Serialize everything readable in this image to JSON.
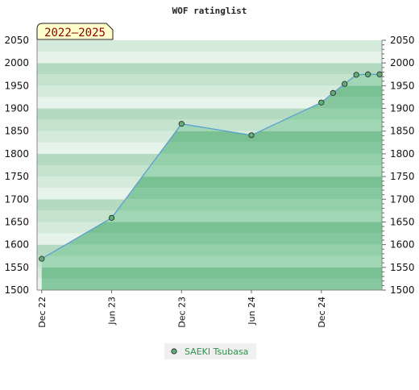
{
  "chart_data": {
    "type": "area",
    "title": "WOF ratinglist",
    "badge": "2022–2025",
    "xlabel": "",
    "ylabel": "",
    "ylim": [
      1500,
      2050
    ],
    "y_ticks": [
      1500,
      1550,
      1600,
      1650,
      1700,
      1750,
      1800,
      1850,
      1900,
      1950,
      2000,
      2050
    ],
    "x_ticks": [
      {
        "label": "Dec 22",
        "t": 0
      },
      {
        "label": "Jun 23",
        "t": 6
      },
      {
        "label": "Dec 23",
        "t": 12
      },
      {
        "label": "Jun 24",
        "t": 18
      },
      {
        "label": "Dec 24",
        "t": 24
      }
    ],
    "x_range": [
      -0.4,
      29.2
    ],
    "grid": true,
    "legend_position": "bottom",
    "series": [
      {
        "name": "SAEKI Tsubasa",
        "color": "#2f8f4e",
        "points": [
          {
            "x": "Dec 22",
            "t": 0,
            "y": 1569
          },
          {
            "x": "Jun 23",
            "t": 6,
            "y": 1659
          },
          {
            "x": "Dec 23",
            "t": 12,
            "y": 1866
          },
          {
            "x": "Jun 24",
            "t": 18,
            "y": 1841
          },
          {
            "x": "Dec 24",
            "t": 24,
            "y": 1913
          },
          {
            "x": "Jan 25",
            "t": 25,
            "y": 1934
          },
          {
            "x": "Feb 25",
            "t": 26,
            "y": 1954
          },
          {
            "x": "Mar 25",
            "t": 27,
            "y": 1974
          },
          {
            "x": "Apr 25",
            "t": 28,
            "y": 1975
          },
          {
            "x": "May 25",
            "t": 29,
            "y": 1975
          }
        ]
      }
    ]
  }
}
